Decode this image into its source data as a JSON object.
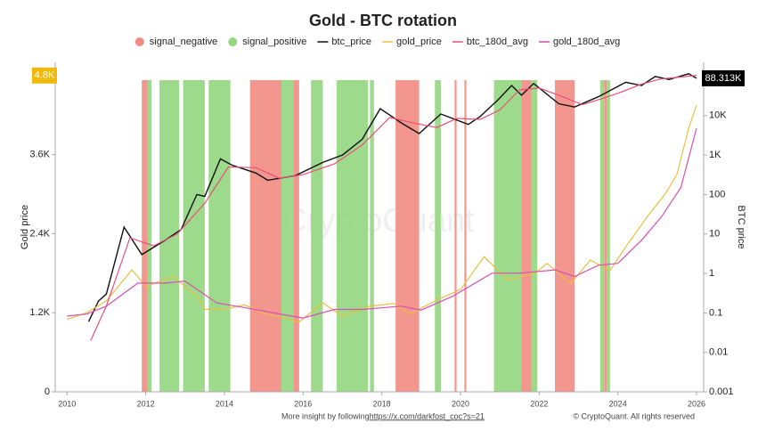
{
  "chart_data": {
    "type": "line",
    "title": "Gold - BTC rotation",
    "y_label": "Gold price",
    "y2_label": "BTC price",
    "watermark": "CryptoQuant",
    "footer": "More insight by following ",
    "footer_link": "https://x.com/darkfost_coc?s=21",
    "copyright": "© CryptoQuant. All rights reserved",
    "xlim": [
      2009.7,
      2026.18
    ],
    "xticks": [
      2010,
      2012,
      2014,
      2016,
      2018,
      2020,
      2022,
      2024,
      2026
    ],
    "ylim": [
      0,
      5000
    ],
    "yticks": [
      0,
      {
        "value": 1200,
        "label": "1.2K"
      },
      {
        "value": 2400,
        "label": "2.4K"
      },
      {
        "value": 3600,
        "label": "3.6K"
      }
    ],
    "y_current": {
      "value": 4800,
      "label": "4.8K"
    },
    "y2_scale": "log",
    "y2lim": [
      0.001,
      224000
    ],
    "y2ticks": [
      0.001,
      0.01,
      0.1,
      1,
      10,
      100,
      {
        "value": 1000,
        "label": "1K"
      },
      {
        "value": 10000,
        "label": "10K"
      }
    ],
    "y2_current": {
      "value": 88313,
      "label": "88.313K"
    },
    "bands": [
      {
        "name": "signal_negative",
        "color": "#f28b82",
        "ranges": [
          [
            2011.9,
            2012.05
          ],
          [
            2014.65,
            2015.45
          ],
          [
            2015.75,
            2015.9
          ],
          [
            2018.35,
            2018.95
          ],
          [
            2019.85,
            2019.9
          ],
          [
            2020.1,
            2020.15
          ],
          [
            2021.55,
            2021.8
          ],
          [
            2022.4,
            2022.9
          ],
          [
            2023.65,
            2023.72
          ]
        ]
      },
      {
        "name": "signal_positive",
        "color": "#93d67f",
        "ranges": [
          [
            2012.05,
            2012.15
          ],
          [
            2012.35,
            2012.85
          ],
          [
            2012.95,
            2013.5
          ],
          [
            2013.6,
            2014.15
          ],
          [
            2015.45,
            2015.75
          ],
          [
            2016.2,
            2016.5
          ],
          [
            2016.85,
            2017.65
          ],
          [
            2017.7,
            2017.8
          ],
          [
            2019.35,
            2019.5
          ],
          [
            2020.85,
            2021.55
          ],
          [
            2021.8,
            2021.95
          ],
          [
            2023.55,
            2023.65
          ],
          [
            2023.72,
            2023.8
          ]
        ]
      }
    ],
    "series": [
      {
        "name": "btc_price",
        "color": "#111111",
        "axis": "y2",
        "x": [
          2010.55,
          2010.8,
          2011.0,
          2011.45,
          2011.9,
          2012.5,
          2012.9,
          2013.3,
          2013.5,
          2013.9,
          2014.2,
          2014.8,
          2015.1,
          2015.8,
          2016.5,
          2017.0,
          2017.5,
          2017.96,
          2018.5,
          2018.95,
          2019.5,
          2020.2,
          2020.5,
          2020.95,
          2021.3,
          2021.55,
          2021.86,
          2022.5,
          2022.9,
          2023.5,
          2024.2,
          2024.6,
          2024.95,
          2025.3,
          2025.8,
          2026.0
        ],
        "values": [
          0.06,
          0.2,
          0.3,
          15,
          3,
          7,
          13,
          100,
          90,
          800,
          550,
          350,
          230,
          300,
          650,
          1000,
          2500,
          15000,
          6500,
          3500,
          11000,
          6000,
          9500,
          25000,
          58000,
          33000,
          65000,
          20000,
          16500,
          30000,
          70000,
          58000,
          98000,
          82000,
          115000,
          88313
        ]
      },
      {
        "name": "gold_price",
        "color": "#e8c040",
        "x": [
          2010.0,
          2010.5,
          2011.0,
          2011.65,
          2012.0,
          2012.7,
          2013.3,
          2013.5,
          2014.0,
          2014.5,
          2015.0,
          2015.9,
          2016.5,
          2017.0,
          2017.7,
          2018.3,
          2018.7,
          2019.5,
          2020.0,
          2020.6,
          2021.2,
          2021.9,
          2022.2,
          2022.8,
          2023.3,
          2023.8,
          2024.2,
          2024.8,
          2025.2,
          2025.5,
          2025.8,
          2026.0
        ],
        "values": [
          1100,
          1200,
          1380,
          1850,
          1600,
          1750,
          1450,
          1250,
          1250,
          1320,
          1200,
          1060,
          1350,
          1150,
          1300,
          1340,
          1180,
          1420,
          1550,
          2050,
          1700,
          1800,
          1950,
          1640,
          2000,
          1840,
          2200,
          2700,
          3000,
          3300,
          4000,
          4350
        ]
      },
      {
        "name": "btc_180d_avg",
        "color": "#e8507a",
        "axis": "y2",
        "x": [
          2010.6,
          2011.0,
          2011.6,
          2012.2,
          2012.8,
          2013.5,
          2014.1,
          2014.8,
          2015.4,
          2016.0,
          2016.8,
          2017.5,
          2018.2,
          2018.8,
          2019.4,
          2019.9,
          2020.5,
          2021.0,
          2021.5,
          2022.0,
          2022.6,
          2023.1,
          2023.6,
          2024.1,
          2024.6,
          2025.1,
          2025.6,
          2026.0
        ],
        "values": [
          0.02,
          0.15,
          8,
          5,
          10,
          60,
          500,
          480,
          260,
          320,
          600,
          1800,
          9000,
          6500,
          5000,
          8500,
          8000,
          14000,
          45000,
          50000,
          30000,
          19000,
          27000,
          40000,
          63000,
          85000,
          95000,
          105000
        ]
      },
      {
        "name": "gold_180d_avg",
        "color": "#d94fb2",
        "x": [
          2010.0,
          2010.5,
          2011.0,
          2011.8,
          2012.5,
          2013.0,
          2013.8,
          2014.5,
          2015.5,
          2016.0,
          2016.8,
          2017.5,
          2018.5,
          2019.0,
          2019.8,
          2020.8,
          2021.5,
          2022.4,
          2022.9,
          2023.5,
          2024.0,
          2024.6,
          2025.1,
          2025.6,
          2026.0
        ],
        "values": [
          1150,
          1180,
          1300,
          1650,
          1650,
          1680,
          1350,
          1280,
          1170,
          1120,
          1250,
          1250,
          1300,
          1240,
          1450,
          1800,
          1800,
          1850,
          1750,
          1920,
          1950,
          2300,
          2650,
          3100,
          4000
        ]
      }
    ]
  }
}
